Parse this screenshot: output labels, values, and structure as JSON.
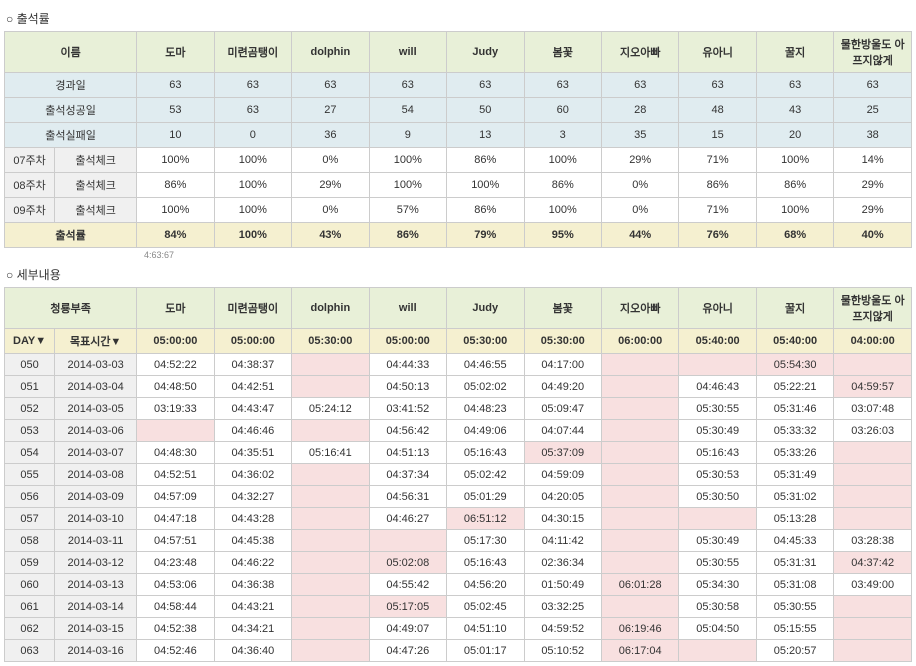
{
  "titles": {
    "attendance": "○ 출석률",
    "detail": "○ 세부내용"
  },
  "tiny_note": "4:63:67",
  "members": [
    "도마",
    "미련곰탱이",
    "dolphin",
    "will",
    "Judy",
    "봄꽃",
    "지오아빠",
    "유아니",
    "꿀지",
    "물한방울도 아프지않게"
  ],
  "attendance": {
    "header_name": "이름",
    "stat_rows": [
      {
        "label": "경과일",
        "vals": [
          "63",
          "63",
          "63",
          "63",
          "63",
          "63",
          "63",
          "63",
          "63",
          "63"
        ],
        "cls": "hdr-blue"
      },
      {
        "label": "출석성공일",
        "vals": [
          "53",
          "63",
          "27",
          "54",
          "50",
          "60",
          "28",
          "48",
          "43",
          "25"
        ],
        "cls": "hdr-blue"
      },
      {
        "label": "출석실패일",
        "vals": [
          "10",
          "0",
          "36",
          "9",
          "13",
          "3",
          "35",
          "15",
          "20",
          "38"
        ],
        "cls": "hdr-blue"
      }
    ],
    "week_rows": [
      {
        "wk": "07주차",
        "lbl": "출석체크",
        "vals": [
          "100%",
          "100%",
          "0%",
          "100%",
          "86%",
          "100%",
          "29%",
          "71%",
          "100%",
          "14%"
        ]
      },
      {
        "wk": "08주차",
        "lbl": "출석체크",
        "vals": [
          "86%",
          "100%",
          "29%",
          "100%",
          "100%",
          "86%",
          "0%",
          "86%",
          "86%",
          "29%"
        ]
      },
      {
        "wk": "09주차",
        "lbl": "출석체크",
        "vals": [
          "100%",
          "100%",
          "0%",
          "57%",
          "86%",
          "100%",
          "0%",
          "71%",
          "100%",
          "29%"
        ]
      }
    ],
    "total_row": {
      "label": "출석률",
      "vals": [
        "84%",
        "100%",
        "43%",
        "86%",
        "79%",
        "95%",
        "44%",
        "76%",
        "68%",
        "40%"
      ]
    }
  },
  "detail": {
    "header_left": "청룡부족",
    "day_header": "DAY▼",
    "target_header": "목표시간▼",
    "targets": [
      "05:00:00",
      "05:00:00",
      "05:30:00",
      "05:00:00",
      "05:30:00",
      "05:30:00",
      "06:00:00",
      "05:40:00",
      "05:40:00",
      "04:00:00"
    ],
    "rows": [
      {
        "d": "050",
        "date": "2014-03-03",
        "c": [
          [
            "04:52:22",
            0
          ],
          [
            "04:38:37",
            0
          ],
          [
            "",
            1
          ],
          [
            "04:44:33",
            0
          ],
          [
            "04:46:55",
            0
          ],
          [
            "04:17:00",
            0
          ],
          [
            "",
            1
          ],
          [
            "",
            1
          ],
          [
            "05:54:30",
            1
          ],
          [
            "",
            1
          ]
        ]
      },
      {
        "d": "051",
        "date": "2014-03-04",
        "c": [
          [
            "04:48:50",
            0
          ],
          [
            "04:42:51",
            0
          ],
          [
            "",
            1
          ],
          [
            "04:50:13",
            0
          ],
          [
            "05:02:02",
            0
          ],
          [
            "04:49:20",
            0
          ],
          [
            "",
            1
          ],
          [
            "04:46:43",
            0
          ],
          [
            "05:22:21",
            0
          ],
          [
            "04:59:57",
            1
          ]
        ]
      },
      {
        "d": "052",
        "date": "2014-03-05",
        "c": [
          [
            "03:19:33",
            0
          ],
          [
            "04:43:47",
            0
          ],
          [
            "05:24:12",
            0
          ],
          [
            "03:41:52",
            0
          ],
          [
            "04:48:23",
            0
          ],
          [
            "05:09:47",
            0
          ],
          [
            "",
            1
          ],
          [
            "05:30:55",
            0
          ],
          [
            "05:31:46",
            0
          ],
          [
            "03:07:48",
            0
          ]
        ]
      },
      {
        "d": "053",
        "date": "2014-03-06",
        "c": [
          [
            "",
            1
          ],
          [
            "04:46:46",
            0
          ],
          [
            "",
            1
          ],
          [
            "04:56:42",
            0
          ],
          [
            "04:49:06",
            0
          ],
          [
            "04:07:44",
            0
          ],
          [
            "",
            1
          ],
          [
            "05:30:49",
            0
          ],
          [
            "05:33:32",
            0
          ],
          [
            "03:26:03",
            0
          ]
        ]
      },
      {
        "d": "054",
        "date": "2014-03-07",
        "c": [
          [
            "04:48:30",
            0
          ],
          [
            "04:35:51",
            0
          ],
          [
            "05:16:41",
            0
          ],
          [
            "04:51:13",
            0
          ],
          [
            "05:16:43",
            0
          ],
          [
            "05:37:09",
            1
          ],
          [
            "",
            1
          ],
          [
            "05:16:43",
            0
          ],
          [
            "05:33:26",
            0
          ],
          [
            "",
            1
          ]
        ]
      },
      {
        "d": "055",
        "date": "2014-03-08",
        "c": [
          [
            "04:52:51",
            0
          ],
          [
            "04:36:02",
            0
          ],
          [
            "",
            1
          ],
          [
            "04:37:34",
            0
          ],
          [
            "05:02:42",
            0
          ],
          [
            "04:59:09",
            0
          ],
          [
            "",
            1
          ],
          [
            "05:30:53",
            0
          ],
          [
            "05:31:49",
            0
          ],
          [
            "",
            1
          ]
        ]
      },
      {
        "d": "056",
        "date": "2014-03-09",
        "c": [
          [
            "04:57:09",
            0
          ],
          [
            "04:32:27",
            0
          ],
          [
            "",
            1
          ],
          [
            "04:56:31",
            0
          ],
          [
            "05:01:29",
            0
          ],
          [
            "04:20:05",
            0
          ],
          [
            "",
            1
          ],
          [
            "05:30:50",
            0
          ],
          [
            "05:31:02",
            0
          ],
          [
            "",
            1
          ]
        ]
      },
      {
        "d": "057",
        "date": "2014-03-10",
        "c": [
          [
            "04:47:18",
            0
          ],
          [
            "04:43:28",
            0
          ],
          [
            "",
            1
          ],
          [
            "04:46:27",
            0
          ],
          [
            "06:51:12",
            1
          ],
          [
            "04:30:15",
            0
          ],
          [
            "",
            1
          ],
          [
            "",
            1
          ],
          [
            "05:13:28",
            0
          ],
          [
            "",
            1
          ]
        ]
      },
      {
        "d": "058",
        "date": "2014-03-11",
        "c": [
          [
            "04:57:51",
            0
          ],
          [
            "04:45:38",
            0
          ],
          [
            "",
            1
          ],
          [
            "",
            1
          ],
          [
            "05:17:30",
            0
          ],
          [
            "04:11:42",
            0
          ],
          [
            "",
            1
          ],
          [
            "05:30:49",
            0
          ],
          [
            "04:45:33",
            0
          ],
          [
            "03:28:38",
            0
          ]
        ]
      },
      {
        "d": "059",
        "date": "2014-03-12",
        "c": [
          [
            "04:23:48",
            0
          ],
          [
            "04:46:22",
            0
          ],
          [
            "",
            1
          ],
          [
            "05:02:08",
            1
          ],
          [
            "05:16:43",
            0
          ],
          [
            "02:36:34",
            0
          ],
          [
            "",
            1
          ],
          [
            "05:30:55",
            0
          ],
          [
            "05:31:31",
            0
          ],
          [
            "04:37:42",
            1
          ]
        ]
      },
      {
        "d": "060",
        "date": "2014-03-13",
        "c": [
          [
            "04:53:06",
            0
          ],
          [
            "04:36:38",
            0
          ],
          [
            "",
            1
          ],
          [
            "04:55:42",
            0
          ],
          [
            "04:56:20",
            0
          ],
          [
            "01:50:49",
            0
          ],
          [
            "06:01:28",
            1
          ],
          [
            "05:34:30",
            0
          ],
          [
            "05:31:08",
            0
          ],
          [
            "03:49:00",
            0
          ]
        ]
      },
      {
        "d": "061",
        "date": "2014-03-14",
        "c": [
          [
            "04:58:44",
            0
          ],
          [
            "04:43:21",
            0
          ],
          [
            "",
            1
          ],
          [
            "05:17:05",
            1
          ],
          [
            "05:02:45",
            0
          ],
          [
            "03:32:25",
            0
          ],
          [
            "",
            1
          ],
          [
            "05:30:58",
            0
          ],
          [
            "05:30:55",
            0
          ],
          [
            "",
            1
          ]
        ]
      },
      {
        "d": "062",
        "date": "2014-03-15",
        "c": [
          [
            "04:52:38",
            0
          ],
          [
            "04:34:21",
            0
          ],
          [
            "",
            1
          ],
          [
            "04:49:07",
            0
          ],
          [
            "04:51:10",
            0
          ],
          [
            "04:59:52",
            0
          ],
          [
            "06:19:46",
            1
          ],
          [
            "05:04:50",
            0
          ],
          [
            "05:15:55",
            0
          ],
          [
            "",
            1
          ]
        ]
      },
      {
        "d": "063",
        "date": "2014-03-16",
        "c": [
          [
            "04:52:46",
            0
          ],
          [
            "04:36:40",
            0
          ],
          [
            "",
            1
          ],
          [
            "04:47:26",
            0
          ],
          [
            "05:01:17",
            0
          ],
          [
            "05:10:52",
            0
          ],
          [
            "06:17:04",
            1
          ],
          [
            "",
            1
          ],
          [
            "05:20:57",
            0
          ],
          [
            "",
            1
          ]
        ]
      }
    ]
  }
}
